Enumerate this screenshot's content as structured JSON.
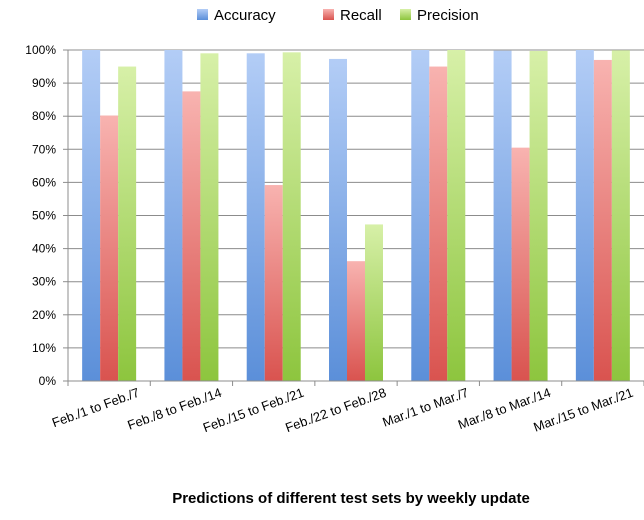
{
  "chart_data": {
    "type": "bar",
    "categories": [
      "Feb./1 to Feb./7",
      "Feb./8 to Feb./14",
      "Feb./15 to Feb./21",
      "Feb./22 to Feb./28",
      "Mar./1 to Mar./7",
      "Mar./8 to Mar./14",
      "Mar./15 to Mar./21"
    ],
    "series": [
      {
        "name": "Accuracy",
        "color": "#5b8fd9",
        "color_light": "#b3cdf6",
        "values": [
          100,
          100,
          99,
          97.3,
          100,
          99.8,
          100
        ]
      },
      {
        "name": "Recall",
        "color": "#d9534f",
        "color_light": "#f8b3b0",
        "values": [
          80.2,
          87.5,
          59.2,
          36.2,
          95,
          70.5,
          97
        ]
      },
      {
        "name": "Precision",
        "color": "#8dc53e",
        "color_light": "#d7f0a8",
        "values": [
          95,
          99,
          99.3,
          47.3,
          100.2,
          99.7,
          99.9
        ]
      }
    ],
    "xlabel": "Predictions of different test sets by weekly update",
    "ylabel": "",
    "ylim": [
      0,
      100
    ],
    "yticks": [
      "0%",
      "10%",
      "20%",
      "30%",
      "40%",
      "50%",
      "60%",
      "70%",
      "80%",
      "90%",
      "100%"
    ],
    "grid": true,
    "legend_position": "top"
  }
}
